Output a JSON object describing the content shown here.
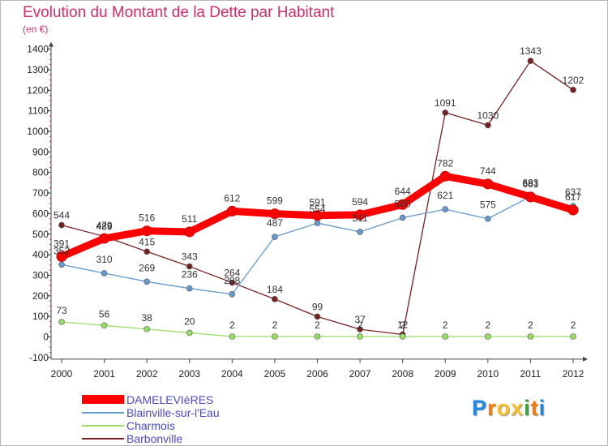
{
  "chart_data": {
    "type": "line",
    "title": "Evolution du Montant de la Dette par Habitant",
    "subtitle": "(en €)",
    "x": [
      "2000",
      "2001",
      "2002",
      "2003",
      "2004",
      "2005",
      "2006",
      "2007",
      "2008",
      "2009",
      "2010",
      "2011",
      "2012"
    ],
    "yticks": [
      "1400",
      "1300",
      "1200",
      "1100",
      "1000",
      "900",
      "800",
      "700",
      "600",
      "500",
      "400",
      "300",
      "200",
      "100",
      "0",
      "-100"
    ],
    "ylim": [
      -100,
      1400
    ],
    "grid": false,
    "legend_position": "bottom-left",
    "series": [
      {
        "name": "DAMELEVIèRES",
        "color": "#ff0000",
        "values": [
          391,
          479,
          516,
          511,
          612,
          599,
          591,
          594,
          644,
          782,
          744,
          681,
          617
        ],
        "labels": [
          "391",
          "479",
          "516",
          "511",
          "612",
          "599",
          "591",
          "594",
          "644",
          "782",
          "744",
          "681",
          "617"
        ]
      },
      {
        "name": "Blainville-sur-l'Eau",
        "color": "#6699cc",
        "values": [
          352,
          310,
          269,
          236,
          208,
          487,
          554,
          511,
          580,
          621,
          575,
          683,
          637
        ],
        "labels": [
          "352",
          "310",
          "269",
          "236",
          "208",
          "487",
          "554",
          "511",
          "580",
          "621",
          "575",
          "683",
          "637"
        ]
      },
      {
        "name": "Charmois",
        "color": "#99dd66",
        "values": [
          73,
          56,
          38,
          20,
          2,
          2,
          2,
          2,
          2,
          2,
          2,
          2,
          2
        ],
        "labels": [
          "73",
          "56",
          "38",
          "20",
          "2",
          "2",
          "2",
          "2",
          "2",
          "2",
          "2",
          "2",
          "2"
        ]
      },
      {
        "name": "Barbonville",
        "color": "#772222",
        "values": [
          544,
          489,
          415,
          343,
          264,
          184,
          99,
          37,
          12,
          1091,
          1030,
          1343,
          1202
        ],
        "labels": [
          "544",
          "489",
          "415",
          "343",
          "264",
          "184",
          "99",
          "37",
          "12",
          "1091",
          "1030",
          "1343",
          "1202"
        ]
      }
    ]
  },
  "brand": {
    "letters": [
      "P",
      "r",
      "o",
      "x",
      "i",
      "t",
      "i"
    ],
    "colors": [
      "#1e88e5",
      "#f57c00",
      "#fbc02d",
      "#fbc02d",
      "#43a047",
      "#f57c00",
      "#1e88e5"
    ]
  }
}
